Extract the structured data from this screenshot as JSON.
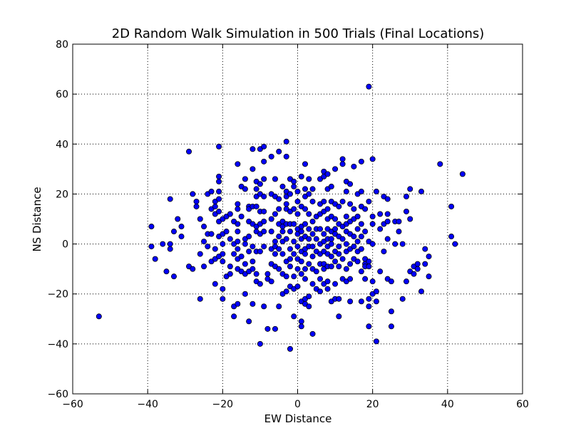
{
  "chart_data": {
    "type": "scatter",
    "title": "2D Random Walk Simulation in 500 Trials (Final Locations)",
    "xlabel": "EW Distance",
    "ylabel": "NS Distance",
    "xlim": [
      -60,
      60
    ],
    "ylim": [
      -60,
      80
    ],
    "xticks": [
      -60,
      -40,
      -20,
      0,
      20,
      40,
      60
    ],
    "yticks": [
      -60,
      -40,
      -20,
      0,
      20,
      40,
      60,
      80
    ],
    "xtick_labels": [
      "−60",
      "−40",
      "−20",
      "0",
      "20",
      "40",
      "60"
    ],
    "ytick_labels": [
      "−60",
      "−40",
      "−20",
      "0",
      "20",
      "40",
      "60",
      "80"
    ],
    "grid": true,
    "marker_color": "#0000ff",
    "marker_edge": "#000000",
    "points": [
      [
        19,
        63
      ],
      [
        -53,
        -29
      ],
      [
        44,
        28
      ],
      [
        38,
        32
      ],
      [
        41,
        15
      ],
      [
        41,
        3
      ],
      [
        42,
        0
      ],
      [
        -39,
        7
      ],
      [
        -39,
        -1
      ],
      [
        -38,
        -6
      ],
      [
        -36,
        0
      ],
      [
        -35,
        -11
      ],
      [
        -34,
        18
      ],
      [
        -34,
        0
      ],
      [
        -34,
        -2
      ],
      [
        -33,
        5
      ],
      [
        -33,
        -13
      ],
      [
        -32,
        10
      ],
      [
        -31,
        7
      ],
      [
        -31,
        3
      ],
      [
        -29,
        37
      ],
      [
        -29,
        -9
      ],
      [
        -28,
        20
      ],
      [
        -28,
        -10
      ],
      [
        -27,
        17
      ],
      [
        -27,
        15
      ],
      [
        -26,
        10
      ],
      [
        -26,
        -4
      ],
      [
        -26,
        -22
      ],
      [
        -25,
        7
      ],
      [
        -25,
        1
      ],
      [
        -25,
        -9
      ],
      [
        -24,
        20
      ],
      [
        -24,
        4
      ],
      [
        -24,
        -1
      ],
      [
        -23,
        21
      ],
      [
        -23,
        14
      ],
      [
        -23,
        4
      ],
      [
        -23,
        -7
      ],
      [
        -22,
        17
      ],
      [
        -22,
        15
      ],
      [
        -22,
        12
      ],
      [
        -22,
        -2
      ],
      [
        -22,
        -6
      ],
      [
        -22,
        -16
      ],
      [
        -21,
        39
      ],
      [
        -21,
        27
      ],
      [
        -21,
        25
      ],
      [
        -21,
        21
      ],
      [
        -21,
        18
      ],
      [
        -21,
        13
      ],
      [
        -21,
        9
      ],
      [
        -21,
        3
      ],
      [
        -21,
        -5
      ],
      [
        -20,
        10
      ],
      [
        -20,
        4
      ],
      [
        -20,
        0
      ],
      [
        -20,
        -4
      ],
      [
        -20,
        -7
      ],
      [
        -20,
        -18
      ],
      [
        -20,
        -22
      ],
      [
        -19,
        11
      ],
      [
        -19,
        5
      ],
      [
        -19,
        -13
      ],
      [
        -18,
        12
      ],
      [
        -18,
        2
      ],
      [
        -18,
        -12
      ],
      [
        -18,
        -9
      ],
      [
        -17,
        9
      ],
      [
        -17,
        0
      ],
      [
        -17,
        -4
      ],
      [
        -17,
        -25
      ],
      [
        -17,
        -29
      ],
      [
        -16,
        32
      ],
      [
        -16,
        16
      ],
      [
        -16,
        14
      ],
      [
        -16,
        8
      ],
      [
        -16,
        5
      ],
      [
        -16,
        1
      ],
      [
        -16,
        -2
      ],
      [
        -16,
        -6
      ],
      [
        -16,
        -10
      ],
      [
        -16,
        -24
      ],
      [
        -15,
        23
      ],
      [
        -15,
        11
      ],
      [
        -15,
        -5
      ],
      [
        -15,
        -11
      ],
      [
        -14,
        26
      ],
      [
        -14,
        22
      ],
      [
        -14,
        2
      ],
      [
        -14,
        0
      ],
      [
        -14,
        -8
      ],
      [
        -14,
        -12
      ],
      [
        -14,
        -20
      ],
      [
        -13,
        15
      ],
      [
        -13,
        14
      ],
      [
        -13,
        9
      ],
      [
        -13,
        3
      ],
      [
        -13,
        -3
      ],
      [
        -13,
        -11
      ],
      [
        -13,
        -31
      ],
      [
        -12,
        38
      ],
      [
        -12,
        30
      ],
      [
        -12,
        15
      ],
      [
        -12,
        8
      ],
      [
        -12,
        -1
      ],
      [
        -12,
        -7
      ],
      [
        -12,
        -10
      ],
      [
        -12,
        -24
      ],
      [
        -11,
        25
      ],
      [
        -11,
        22
      ],
      [
        -11,
        19
      ],
      [
        -11,
        15
      ],
      [
        -11,
        7
      ],
      [
        -11,
        5
      ],
      [
        -11,
        -3
      ],
      [
        -11,
        -12
      ],
      [
        -11,
        -15
      ],
      [
        -10,
        38
      ],
      [
        -10,
        24
      ],
      [
        -10,
        20
      ],
      [
        -10,
        13
      ],
      [
        -10,
        8
      ],
      [
        -10,
        4
      ],
      [
        -10,
        -3
      ],
      [
        -10,
        -16
      ],
      [
        -10,
        -40
      ],
      [
        -9,
        39
      ],
      [
        -9,
        33
      ],
      [
        -9,
        26
      ],
      [
        -9,
        19
      ],
      [
        -9,
        13
      ],
      [
        -9,
        9
      ],
      [
        -9,
        5
      ],
      [
        -9,
        -1
      ],
      [
        -9,
        -25
      ],
      [
        -8,
        -12
      ],
      [
        -8,
        -14
      ],
      [
        -8,
        -34
      ],
      [
        -7,
        35
      ],
      [
        -7,
        20
      ],
      [
        -7,
        10
      ],
      [
        -7,
        5
      ],
      [
        -7,
        -2
      ],
      [
        -7,
        -8
      ],
      [
        -7,
        -15
      ],
      [
        -6,
        26
      ],
      [
        -6,
        19
      ],
      [
        -6,
        12
      ],
      [
        -6,
        1
      ],
      [
        -6,
        -1
      ],
      [
        -6,
        -4
      ],
      [
        -6,
        -9
      ],
      [
        -6,
        -34
      ],
      [
        -5,
        37
      ],
      [
        -5,
        18
      ],
      [
        -5,
        14
      ],
      [
        -5,
        8
      ],
      [
        -5,
        3
      ],
      [
        -5,
        -2
      ],
      [
        -5,
        -10
      ],
      [
        -5,
        -25
      ],
      [
        -4,
        23
      ],
      [
        -4,
        9
      ],
      [
        -4,
        7
      ],
      [
        -4,
        5
      ],
      [
        -4,
        1
      ],
      [
        -4,
        -4
      ],
      [
        -4,
        -12
      ],
      [
        -4,
        -20
      ],
      [
        -3,
        41
      ],
      [
        -3,
        35
      ],
      [
        -3,
        21
      ],
      [
        -3,
        19
      ],
      [
        -3,
        16
      ],
      [
        -3,
        14
      ],
      [
        -3,
        8
      ],
      [
        -3,
        2
      ],
      [
        -3,
        -7
      ],
      [
        -3,
        -13
      ],
      [
        -3,
        -19
      ],
      [
        -2,
        26
      ],
      [
        -2,
        20
      ],
      [
        -2,
        13
      ],
      [
        -2,
        8
      ],
      [
        -2,
        5
      ],
      [
        -2,
        -2
      ],
      [
        -2,
        -6
      ],
      [
        -2,
        -9
      ],
      [
        -2,
        -17
      ],
      [
        -2,
        -42
      ],
      [
        -1,
        25
      ],
      [
        -1,
        23
      ],
      [
        -1,
        14
      ],
      [
        -1,
        8
      ],
      [
        -1,
        1
      ],
      [
        -1,
        -4
      ],
      [
        -1,
        -13
      ],
      [
        -1,
        -18
      ],
      [
        -1,
        -29
      ],
      [
        0,
        21
      ],
      [
        0,
        17
      ],
      [
        0,
        12
      ],
      [
        0,
        6
      ],
      [
        0,
        4
      ],
      [
        0,
        -1
      ],
      [
        0,
        -6
      ],
      [
        0,
        -10
      ],
      [
        0,
        -17
      ],
      [
        1,
        27
      ],
      [
        1,
        15
      ],
      [
        1,
        7
      ],
      [
        1,
        5
      ],
      [
        1,
        2
      ],
      [
        1,
        -3
      ],
      [
        1,
        -7
      ],
      [
        1,
        -12
      ],
      [
        1,
        -23
      ],
      [
        1,
        -31
      ],
      [
        1,
        -33
      ],
      [
        2,
        32
      ],
      [
        2,
        22
      ],
      [
        2,
        19
      ],
      [
        2,
        14
      ],
      [
        2,
        8
      ],
      [
        2,
        3
      ],
      [
        2,
        -2
      ],
      [
        2,
        -4
      ],
      [
        2,
        -10
      ],
      [
        2,
        -14
      ],
      [
        2,
        -22
      ],
      [
        2,
        -24
      ],
      [
        3,
        26
      ],
      [
        3,
        20
      ],
      [
        3,
        12
      ],
      [
        3,
        6
      ],
      [
        3,
        2
      ],
      [
        3,
        -1
      ],
      [
        3,
        -8
      ],
      [
        3,
        -21
      ],
      [
        3,
        -25
      ],
      [
        4,
        22
      ],
      [
        4,
        17
      ],
      [
        4,
        9
      ],
      [
        4,
        4
      ],
      [
        4,
        -1
      ],
      [
        4,
        -5
      ],
      [
        4,
        -10
      ],
      [
        4,
        -16
      ],
      [
        4,
        -36
      ],
      [
        5,
        11
      ],
      [
        5,
        6
      ],
      [
        5,
        2
      ],
      [
        5,
        -3
      ],
      [
        5,
        -11
      ],
      [
        5,
        -18
      ],
      [
        6,
        26
      ],
      [
        6,
        16
      ],
      [
        6,
        12
      ],
      [
        6,
        6
      ],
      [
        6,
        0
      ],
      [
        6,
        -4
      ],
      [
        6,
        -8
      ],
      [
        6,
        -14
      ],
      [
        6,
        -19
      ],
      [
        7,
        29
      ],
      [
        7,
        27
      ],
      [
        7,
        17
      ],
      [
        7,
        13
      ],
      [
        7,
        4
      ],
      [
        7,
        1
      ],
      [
        7,
        -3
      ],
      [
        7,
        -8
      ],
      [
        7,
        -10
      ],
      [
        7,
        -16
      ],
      [
        8,
        28
      ],
      [
        8,
        22
      ],
      [
        8,
        14
      ],
      [
        8,
        10
      ],
      [
        8,
        6
      ],
      [
        8,
        2
      ],
      [
        8,
        -1
      ],
      [
        8,
        -4
      ],
      [
        8,
        -9
      ],
      [
        8,
        -15
      ],
      [
        8,
        -18
      ],
      [
        9,
        23
      ],
      [
        9,
        17
      ],
      [
        9,
        11
      ],
      [
        9,
        5
      ],
      [
        9,
        2
      ],
      [
        9,
        0
      ],
      [
        9,
        -5
      ],
      [
        9,
        -9
      ],
      [
        9,
        -23
      ],
      [
        10,
        30
      ],
      [
        10,
        16
      ],
      [
        10,
        10
      ],
      [
        10,
        6
      ],
      [
        10,
        4
      ],
      [
        10,
        -3
      ],
      [
        10,
        -7
      ],
      [
        10,
        -16
      ],
      [
        10,
        -22
      ],
      [
        11,
        15
      ],
      [
        11,
        8
      ],
      [
        11,
        3
      ],
      [
        11,
        -1
      ],
      [
        11,
        -4
      ],
      [
        11,
        -9
      ],
      [
        11,
        -22
      ],
      [
        11,
        -29
      ],
      [
        12,
        34
      ],
      [
        12,
        32
      ],
      [
        12,
        17
      ],
      [
        12,
        7
      ],
      [
        12,
        2
      ],
      [
        12,
        -6
      ],
      [
        12,
        -14
      ],
      [
        13,
        25
      ],
      [
        13,
        21
      ],
      [
        13,
        11
      ],
      [
        13,
        8
      ],
      [
        13,
        5
      ],
      [
        13,
        0
      ],
      [
        13,
        -3
      ],
      [
        13,
        -10
      ],
      [
        13,
        -15
      ],
      [
        14,
        24
      ],
      [
        14,
        16
      ],
      [
        14,
        9
      ],
      [
        14,
        4
      ],
      [
        14,
        -2
      ],
      [
        14,
        -8
      ],
      [
        14,
        -14
      ],
      [
        14,
        -23
      ],
      [
        15,
        31
      ],
      [
        15,
        14
      ],
      [
        15,
        10
      ],
      [
        15,
        3
      ],
      [
        15,
        -1
      ],
      [
        15,
        -6
      ],
      [
        16,
        20
      ],
      [
        16,
        11
      ],
      [
        16,
        6
      ],
      [
        16,
        1
      ],
      [
        16,
        -3
      ],
      [
        16,
        -7
      ],
      [
        17,
        33
      ],
      [
        17,
        21
      ],
      [
        17,
        15
      ],
      [
        17,
        8
      ],
      [
        17,
        3
      ],
      [
        17,
        -2
      ],
      [
        17,
        -11
      ],
      [
        17,
        -23
      ],
      [
        18,
        14
      ],
      [
        18,
        5
      ],
      [
        18,
        -6
      ],
      [
        18,
        -8
      ],
      [
        18,
        -9
      ],
      [
        18,
        -14
      ],
      [
        19,
        17
      ],
      [
        19,
        1
      ],
      [
        19,
        -7
      ],
      [
        19,
        -9
      ],
      [
        19,
        -22
      ],
      [
        19,
        -25
      ],
      [
        19,
        -33
      ],
      [
        20,
        34
      ],
      [
        20,
        11
      ],
      [
        20,
        8
      ],
      [
        20,
        0
      ],
      [
        20,
        -15
      ],
      [
        20,
        -20
      ],
      [
        21,
        21
      ],
      [
        21,
        -19
      ],
      [
        21,
        -23
      ],
      [
        21,
        -39
      ],
      [
        22,
        12
      ],
      [
        22,
        6
      ],
      [
        22,
        -11
      ],
      [
        23,
        19
      ],
      [
        23,
        8
      ],
      [
        23,
        -3
      ],
      [
        24,
        18
      ],
      [
        24,
        12
      ],
      [
        24,
        9
      ],
      [
        24,
        2
      ],
      [
        24,
        -14
      ],
      [
        25,
        -15
      ],
      [
        25,
        -27
      ],
      [
        25,
        -33
      ],
      [
        26,
        9
      ],
      [
        26,
        0
      ],
      [
        27,
        5
      ],
      [
        27,
        9
      ],
      [
        28,
        -22
      ],
      [
        28,
        0
      ],
      [
        29,
        19
      ],
      [
        29,
        13
      ],
      [
        29,
        -15
      ],
      [
        30,
        22
      ],
      [
        30,
        10
      ],
      [
        30,
        -11
      ],
      [
        31,
        -9
      ],
      [
        31,
        -12
      ],
      [
        32,
        -8
      ],
      [
        32,
        -10
      ],
      [
        33,
        21
      ],
      [
        33,
        -19
      ],
      [
        34,
        -2
      ],
      [
        34,
        -8
      ],
      [
        35,
        -5
      ],
      [
        35,
        -13
      ]
    ]
  }
}
